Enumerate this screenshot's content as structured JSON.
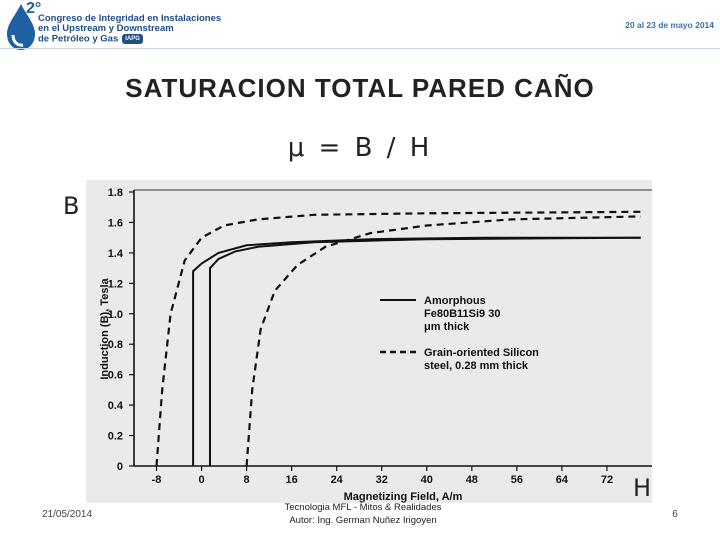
{
  "header": {
    "logo_number": "2°",
    "conference_lines": [
      "Congreso de Integridad en Instalaciones",
      "en el Upstream y Downstream",
      "de Petróleo y Gas"
    ],
    "badge": "IAPG",
    "dates": "20 al 23 de mayo 2014",
    "brand_color": "#1f4e86"
  },
  "slide": {
    "title": "SATURACION TOTAL PARED CAÑO",
    "formula": "μ = B / H",
    "label_b": "B",
    "label_h": "H"
  },
  "chart_data": {
    "type": "line",
    "xlabel": "Magnetizing Field, A/m",
    "ylabel": "Induction (B), Tesla",
    "xlim": [
      -12,
      80
    ],
    "ylim": [
      0,
      1.8
    ],
    "x_ticks": [
      -8,
      0,
      8,
      16,
      24,
      32,
      40,
      48,
      56,
      64,
      72
    ],
    "y_ticks": [
      0,
      0.2,
      0.4,
      0.6,
      0.8,
      1.0,
      1.2,
      1.4,
      1.6,
      1.8
    ],
    "y_tick_labels": [
      "0",
      "0.2",
      "0.4",
      "0.6",
      "0.8",
      "1.0",
      "1.2",
      "1.4",
      "1.6",
      "1.8"
    ],
    "legend": [
      "Amorphous Fe80B11Si9 30 μm thick",
      "Grain-oriented Silicon steel, 0.28 mm thick"
    ],
    "legend_position": "right",
    "series": [
      {
        "name": "Amorphous Fe80B11Si9 30 μm thick",
        "style": "solid",
        "branches": [
          [
            [
              -1.5,
              0
            ],
            [
              -1.5,
              1.28
            ],
            [
              0,
              1.33
            ],
            [
              3,
              1.4
            ],
            [
              8,
              1.45
            ],
            [
              16,
              1.47
            ],
            [
              30,
              1.49
            ],
            [
              50,
              1.5
            ],
            [
              78,
              1.5
            ]
          ],
          [
            [
              1.5,
              0
            ],
            [
              1.5,
              1.3
            ],
            [
              3,
              1.36
            ],
            [
              6,
              1.41
            ],
            [
              10,
              1.44
            ],
            [
              20,
              1.47
            ],
            [
              40,
              1.49
            ],
            [
              78,
              1.5
            ]
          ]
        ]
      },
      {
        "name": "Grain-oriented Silicon steel, 0.28 mm thick",
        "style": "dashed",
        "branches": [
          [
            [
              -8,
              0
            ],
            [
              -7,
              0.5
            ],
            [
              -5.5,
              1.0
            ],
            [
              -3,
              1.35
            ],
            [
              0,
              1.5
            ],
            [
              4,
              1.58
            ],
            [
              10,
              1.62
            ],
            [
              20,
              1.65
            ],
            [
              40,
              1.66
            ],
            [
              78,
              1.67
            ]
          ],
          [
            [
              8,
              0
            ],
            [
              9,
              0.5
            ],
            [
              10.5,
              0.9
            ],
            [
              13,
              1.15
            ],
            [
              17,
              1.32
            ],
            [
              22,
              1.44
            ],
            [
              30,
              1.53
            ],
            [
              40,
              1.58
            ],
            [
              55,
              1.62
            ],
            [
              78,
              1.64
            ]
          ]
        ]
      }
    ]
  },
  "footer": {
    "date": "21/05/2014",
    "line1": "Tecnologia MFL - Mitos & Realidades",
    "line2": "Autor: Ing. German Nuñez Irigoyen",
    "page": "6"
  }
}
